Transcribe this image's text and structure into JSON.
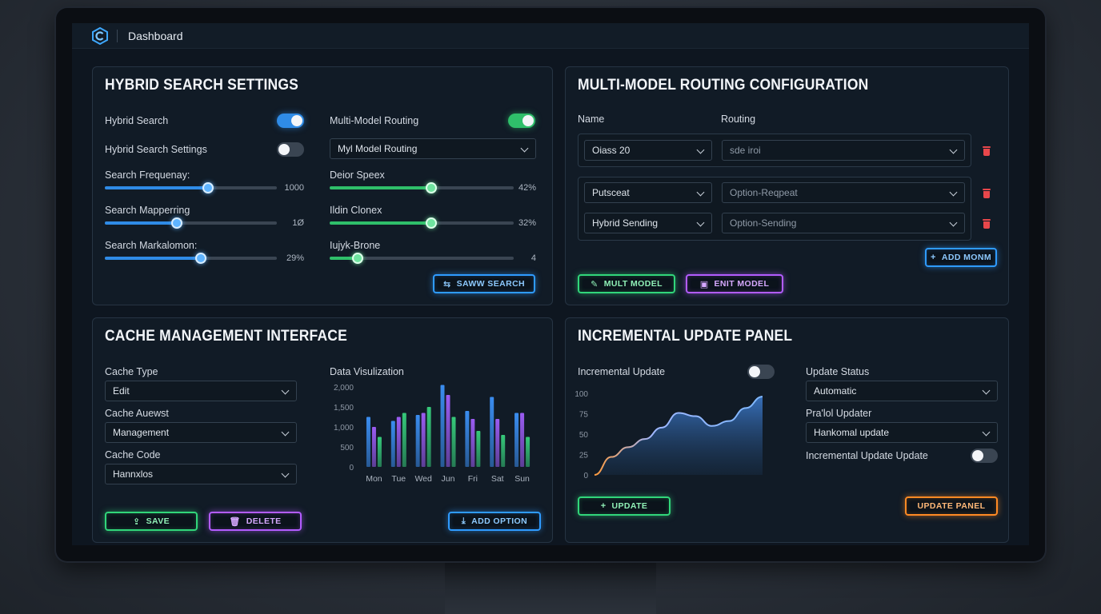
{
  "topbar": {
    "title": "Dashboard"
  },
  "hybrid": {
    "title": "HYBRID SEARCH SETTINGS",
    "hybrid_search_label": "Hybrid Search",
    "hybrid_search_on": true,
    "settings_label": "Hybrid Search Settings",
    "settings_on": false,
    "multi_routing_label": "Multi-Model Routing",
    "multi_routing_on": true,
    "model_routing_select": "Myl Model Routing",
    "left_sliders": [
      {
        "label": "Search Frequenay:",
        "value_text": "1000",
        "level": 0.6
      },
      {
        "label": "Search Mapperring",
        "value_text": "1Ø",
        "level": 0.42
      },
      {
        "label": "Search Markalomon:",
        "value_text": "29%",
        "level": 0.56
      }
    ],
    "right_sliders": [
      {
        "label": "Deior Speex",
        "value_text": "42%",
        "level": 0.55
      },
      {
        "label": "Ildin Clonex",
        "value_text": "32%",
        "level": 0.55
      },
      {
        "label": "Iujyk-Brone",
        "value_text": "4",
        "level": 0.15
      }
    ],
    "search_button": "SAWW SEARCH"
  },
  "routing": {
    "title": "MULTI-MODEL ROUTING CONFIGURATION",
    "col_name": "Name",
    "col_routing": "Routing",
    "rows": [
      {
        "name": "Oiass 20",
        "routing": "sde iroi"
      },
      {
        "name": "Putsceat",
        "routing": "Option-Reqpeat"
      },
      {
        "name": "Hybrid Sending",
        "routing": "Option-Sending"
      }
    ],
    "add_button": "ADD MONM",
    "multi_button": "MULT MODEL",
    "enit_button": "ENIT MODEL"
  },
  "cache": {
    "title": "CACHE MANAGEMENT INTERFACE",
    "cache_type_label": "Cache Type",
    "cache_type_value": "Edit",
    "cache_auewst_label": "Cache Auewst",
    "cache_auewst_value": "Management",
    "cache_code_label": "Cache Code",
    "cache_code_value": "Hannxlos",
    "save_button": "SAVE",
    "delete_button": "DELETE",
    "add_option_button": "ADD OPTION",
    "viz_label": "Data Visulization"
  },
  "incremental": {
    "title": "INCREMENTAL UPDATE PANEL",
    "incremental_label": "Incremental Update",
    "incremental_on": false,
    "status_label": "Update Status",
    "status_value": "Automatic",
    "updater_label": "Pra'lol Updater",
    "updater_value": "Hankomal update",
    "inc_update_label": "Incremental Update Update",
    "inc_update_on": false,
    "update_button": "UPDATE",
    "update_panel_button": "UPDATE PANEL"
  },
  "colors": {
    "blue": "#2f8be6",
    "green": "#2fbf6a",
    "purple": "#b35cff",
    "orange": "#ff8a24",
    "red": "#e8474b",
    "cyan": "#3ea8ff"
  },
  "icons": {
    "logo": "hexagon-logo-icon",
    "search": "sliders-icon",
    "add": "plus-icon",
    "edit": "edit-icon",
    "save": "upload-icon",
    "delete": "trash-icon",
    "download": "download-icon"
  },
  "chart_data": [
    {
      "type": "bar",
      "categories": [
        "Mon",
        "Tue",
        "Wed",
        "Jun",
        "Fri",
        "Sat",
        "Sun"
      ],
      "series": [
        {
          "values": [
            1250,
            1150,
            1300,
            2050,
            1400,
            1750,
            1350
          ]
        },
        {
          "values": [
            1000,
            1250,
            1350,
            1800,
            1200,
            1200,
            1350
          ]
        },
        {
          "values": [
            750,
            1350,
            1500,
            1250,
            900,
            800,
            750
          ]
        }
      ],
      "yticks": [
        "2,000",
        "1,500",
        "1,000",
        "500",
        "0"
      ],
      "ylim": [
        0,
        2000
      ]
    },
    {
      "type": "area",
      "x": [
        0,
        1,
        2,
        3,
        4,
        5,
        6,
        7,
        8,
        9,
        10
      ],
      "values": [
        0,
        22,
        34,
        44,
        58,
        76,
        72,
        60,
        66,
        82,
        96
      ],
      "yticks": [
        "100",
        "75",
        "50",
        "25",
        "0"
      ],
      "ylim": [
        0,
        100
      ]
    }
  ]
}
